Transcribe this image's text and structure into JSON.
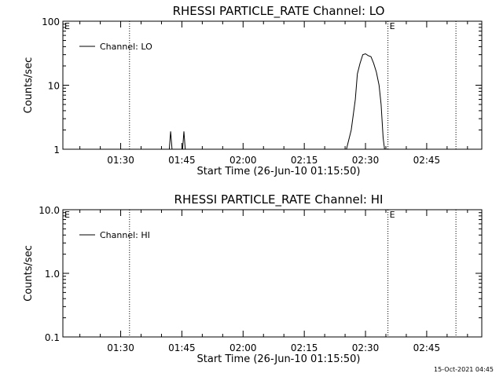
{
  "footer": {
    "timestamp": "15-Oct-2021 04:45"
  },
  "chart_data": [
    {
      "type": "line",
      "title": "RHESSI PARTICLE_RATE Channel: LO",
      "xlabel": "Start Time (26-Jun-10 01:15:50)",
      "ylabel": "Counts/sec",
      "yscale": "log",
      "ylim": [
        1,
        100
      ],
      "ytick_labels": [
        "1",
        "10",
        "100"
      ],
      "xlim": [
        "01:15:50",
        "02:58:30"
      ],
      "xtick_labels": [
        "01:30",
        "01:45",
        "02:00",
        "02:15",
        "02:30",
        "02:45"
      ],
      "legend": {
        "position": "top-left",
        "entries": [
          "Channel: LO"
        ]
      },
      "event_markers": [
        {
          "time": "01:32:10",
          "label": ""
        },
        {
          "time": "02:35:30",
          "label": "E"
        },
        {
          "time": "02:52:10",
          "label": ""
        }
      ],
      "corner_label": "E",
      "series": [
        {
          "name": "Channel: LO",
          "points": [
            [
              "01:41:55",
              1
            ],
            [
              "01:42:15",
              1.9
            ],
            [
              "01:42:35",
              1
            ],
            [
              "01:45:10",
              1
            ],
            [
              "01:45:30",
              1.9
            ],
            [
              "01:45:50",
              1
            ],
            [
              "02:25:20",
              1
            ],
            [
              "02:26:30",
              2
            ],
            [
              "02:27:30",
              6
            ],
            [
              "02:28:00",
              15
            ],
            [
              "02:28:40",
              22
            ],
            [
              "02:29:20",
              30
            ],
            [
              "02:30:00",
              31
            ],
            [
              "02:30:40",
              29
            ],
            [
              "02:31:20",
              28
            ],
            [
              "02:32:00",
              22
            ],
            [
              "02:32:40",
              16
            ],
            [
              "02:33:20",
              10
            ],
            [
              "02:33:50",
              5
            ],
            [
              "02:34:20",
              1.5
            ],
            [
              "02:34:40",
              1
            ]
          ]
        }
      ]
    },
    {
      "type": "line",
      "title": "RHESSI PARTICLE_RATE Channel: HI",
      "xlabel": "Start Time (26-Jun-10 01:15:50)",
      "ylabel": "Counts/sec",
      "yscale": "log",
      "ylim": [
        0.1,
        10
      ],
      "ytick_labels": [
        "0.1",
        "1.0",
        "10.0"
      ],
      "xlim": [
        "01:15:50",
        "02:58:30"
      ],
      "xtick_labels": [
        "01:30",
        "01:45",
        "02:00",
        "02:15",
        "02:30",
        "02:45"
      ],
      "legend": {
        "position": "top-left",
        "entries": [
          "Channel: HI"
        ]
      },
      "event_markers": [
        {
          "time": "01:32:10",
          "label": ""
        },
        {
          "time": "02:35:30",
          "label": "E"
        },
        {
          "time": "02:52:10",
          "label": ""
        }
      ],
      "corner_label": "E",
      "series": [
        {
          "name": "Channel: HI",
          "points": []
        }
      ]
    }
  ]
}
